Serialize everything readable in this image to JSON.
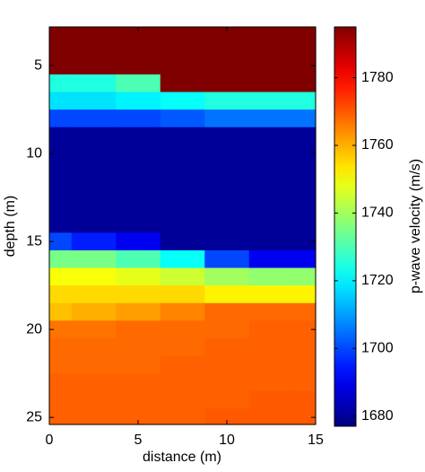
{
  "chart_data": {
    "type": "heatmap",
    "x_label": "distance (m)",
    "y_label": "depth (m)",
    "colorbar_label": "p-wave velocity (m/s)",
    "colormap": "jet",
    "x": [
      0,
      2.5,
      5,
      7.5,
      10,
      12.5,
      15
    ],
    "y": [
      3,
      4,
      5,
      6,
      7,
      8,
      9,
      10,
      11,
      12,
      13,
      14,
      15,
      16,
      17,
      18,
      19,
      20,
      21,
      22,
      23,
      24,
      25
    ],
    "values": [
      [
        1795,
        1795,
        1795,
        1795,
        1795,
        1795,
        1795
      ],
      [
        1795,
        1795,
        1795,
        1795,
        1795,
        1795,
        1795
      ],
      [
        1795,
        1795,
        1795,
        1795,
        1795,
        1795,
        1795
      ],
      [
        1725,
        1725,
        1730,
        1795,
        1795,
        1795,
        1795
      ],
      [
        1718,
        1718,
        1720,
        1722,
        1725,
        1725,
        1725
      ],
      [
        1700,
        1700,
        1700,
        1702,
        1705,
        1705,
        1705
      ],
      [
        1680,
        1680,
        1680,
        1680,
        1680,
        1680,
        1680
      ],
      [
        1680,
        1680,
        1680,
        1680,
        1680,
        1680,
        1680
      ],
      [
        1680,
        1680,
        1680,
        1680,
        1680,
        1680,
        1680
      ],
      [
        1680,
        1680,
        1680,
        1680,
        1680,
        1680,
        1680
      ],
      [
        1680,
        1680,
        1680,
        1680,
        1680,
        1680,
        1680
      ],
      [
        1680,
        1680,
        1680,
        1680,
        1680,
        1680,
        1680
      ],
      [
        1700,
        1695,
        1690,
        1680,
        1680,
        1680,
        1680
      ],
      [
        1735,
        1735,
        1730,
        1722,
        1700,
        1690,
        1690
      ],
      [
        1750,
        1750,
        1748,
        1745,
        1740,
        1738,
        1738
      ],
      [
        1755,
        1755,
        1755,
        1755,
        1752,
        1752,
        1752
      ],
      [
        1758,
        1760,
        1762,
        1765,
        1768,
        1768,
        1768
      ],
      [
        1767,
        1767,
        1768,
        1768,
        1768,
        1769,
        1769
      ],
      [
        1768,
        1768,
        1768,
        1768,
        1769,
        1769,
        1769
      ],
      [
        1768,
        1768,
        1768,
        1769,
        1769,
        1769,
        1769
      ],
      [
        1769,
        1769,
        1769,
        1769,
        1769,
        1769,
        1769
      ],
      [
        1769,
        1769,
        1769,
        1769,
        1769,
        1770,
        1770
      ],
      [
        1769,
        1769,
        1769,
        1769,
        1770,
        1770,
        1770
      ]
    ],
    "xlim": [
      0,
      15
    ],
    "ylim": [
      2.8,
      25.4
    ],
    "xticks": [
      0,
      5,
      10,
      15
    ],
    "yticks": [
      5,
      10,
      15,
      20,
      25
    ],
    "y_inverted": true,
    "clim": [
      1677,
      1795
    ],
    "colorbar_ticks": [
      1680,
      1700,
      1720,
      1740,
      1760,
      1780
    ]
  }
}
